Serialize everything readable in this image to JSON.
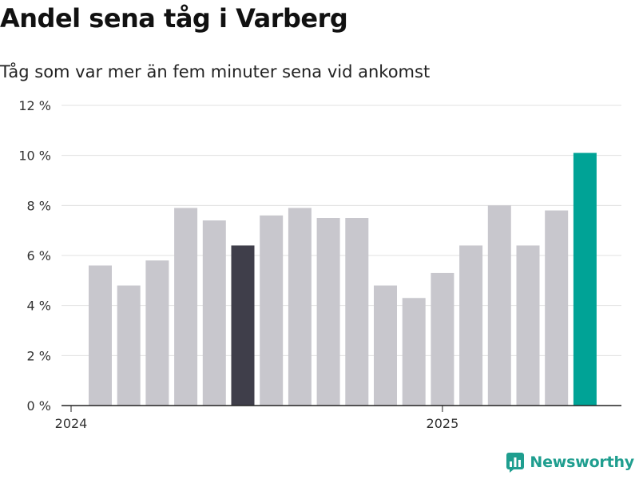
{
  "header": {
    "title": "Andel sena tåg i Varberg",
    "subtitle": "Tåg som var mer än fem minuter sena vid ankomst"
  },
  "brand": {
    "name": "Newsworthy",
    "icon": "newsworthy-logo-icon",
    "color": "#1f9e8f"
  },
  "chart_data": {
    "type": "bar",
    "title": "Andel sena tåg i Varberg",
    "subtitle": "Tåg som var mer än fem minuter sena vid ankomst",
    "xlabel": "",
    "ylabel": "",
    "categories": [
      "2024-01",
      "2024-02",
      "2024-03",
      "2024-04",
      "2024-05",
      "2024-06",
      "2024-07",
      "2024-08",
      "2024-09",
      "2024-10",
      "2024-11",
      "2024-12",
      "2025-01",
      "2025-02",
      "2025-03",
      "2025-04",
      "2025-05",
      "2025-06"
    ],
    "values": [
      5.6,
      4.8,
      5.8,
      7.9,
      7.4,
      6.4,
      7.6,
      7.9,
      7.5,
      7.5,
      4.8,
      4.3,
      5.3,
      6.4,
      8.0,
      6.4,
      7.8,
      10.1
    ],
    "x_tick_labels": [
      {
        "category": "2024-01",
        "label": "2024"
      },
      {
        "category": "2025-01",
        "label": "2025"
      }
    ],
    "ylim": [
      0,
      12
    ],
    "y_ticks": [
      0,
      2,
      4,
      6,
      8,
      10,
      12
    ],
    "y_tick_labels": [
      "0 %",
      "2 %",
      "4 %",
      "6 %",
      "8 %",
      "10 %",
      "12 %"
    ],
    "grid": true,
    "colors": {
      "default": "#c8c7cd",
      "highlight_dark": "#3f3e4a",
      "highlight_latest": "#00a396",
      "grid": "#e0e0e0",
      "axis": "#222222"
    },
    "highlights": {
      "2024-06": "highlight_dark",
      "2025-06": "highlight_latest"
    }
  }
}
